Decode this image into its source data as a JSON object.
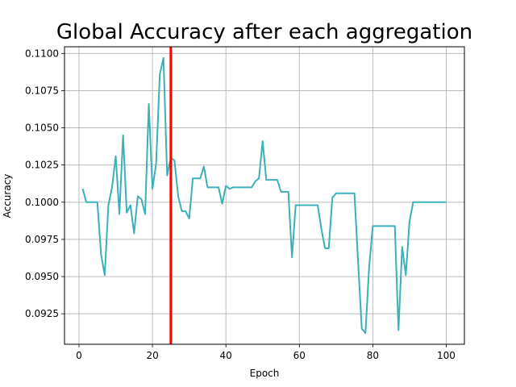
{
  "chart_data": {
    "type": "line",
    "title": "Global Accuracy after each aggregation",
    "xlabel": "Epoch",
    "ylabel": "Accuracy",
    "xlim": [
      -3.95,
      104.95
    ],
    "ylim": [
      0.09045,
      0.11045
    ],
    "xticks": [
      0,
      20,
      40,
      60,
      80,
      100
    ],
    "yticks": [
      0.0925,
      0.095,
      0.0975,
      0.1,
      0.1025,
      0.105,
      0.1075,
      0.11
    ],
    "ytick_labels": [
      "0.0925",
      "0.0950",
      "0.0975",
      "0.1000",
      "0.1025",
      "0.1050",
      "0.1075",
      "0.1100"
    ],
    "grid": true,
    "vertical_line": {
      "x": 25,
      "color": "#ff0000"
    },
    "series": [
      {
        "color": "#3cb0b8",
        "x": [
          1,
          2,
          3,
          4,
          5,
          6,
          7,
          8,
          9,
          10,
          11,
          12,
          13,
          14,
          15,
          16,
          17,
          18,
          19,
          20,
          21,
          22,
          23,
          24,
          25,
          26,
          27,
          28,
          29,
          30,
          31,
          32,
          33,
          34,
          35,
          36,
          37,
          38,
          39,
          40,
          41,
          42,
          43,
          44,
          45,
          46,
          47,
          48,
          49,
          50,
          51,
          52,
          53,
          54,
          55,
          56,
          57,
          58,
          59,
          60,
          61,
          62,
          63,
          64,
          65,
          66,
          67,
          68,
          69,
          70,
          71,
          72,
          73,
          74,
          75,
          76,
          77,
          78,
          79,
          80,
          81,
          82,
          83,
          84,
          85,
          86,
          87,
          88,
          89,
          90,
          91,
          92,
          93,
          94,
          95,
          96,
          97,
          98,
          99,
          100
        ],
        "y": [
          0.1009,
          0.1,
          0.1,
          0.1,
          0.1,
          0.0965,
          0.0951,
          0.0998,
          0.101,
          0.1031,
          0.0992,
          0.1045,
          0.0993,
          0.0998,
          0.0979,
          0.1004,
          0.1002,
          0.0992,
          0.1066,
          0.1009,
          0.1026,
          0.1086,
          0.1097,
          0.1018,
          0.103,
          0.1028,
          0.1004,
          0.0994,
          0.0994,
          0.0989,
          0.1016,
          0.1016,
          0.1016,
          0.1024,
          0.101,
          0.101,
          0.101,
          0.101,
          0.0999,
          0.1011,
          0.1009,
          0.101,
          0.101,
          0.101,
          0.101,
          0.101,
          0.101,
          0.1014,
          0.1016,
          0.1041,
          0.1015,
          0.1015,
          0.1015,
          0.1015,
          0.1007,
          0.1007,
          0.1007,
          0.0963,
          0.0998,
          0.0998,
          0.0998,
          0.0998,
          0.0998,
          0.0998,
          0.0998,
          0.0982,
          0.0969,
          0.0969,
          0.1003,
          0.1006,
          0.1006,
          0.1006,
          0.1006,
          0.1006,
          0.1006,
          0.096,
          0.0915,
          0.0912,
          0.0956,
          0.0984,
          0.0984,
          0.0984,
          0.0984,
          0.0984,
          0.0984,
          0.0984,
          0.0914,
          0.097,
          0.0951,
          0.0987,
          0.1,
          0.1,
          0.1,
          0.1,
          0.1,
          0.1,
          0.1,
          0.1,
          0.1,
          0.1
        ]
      }
    ]
  }
}
